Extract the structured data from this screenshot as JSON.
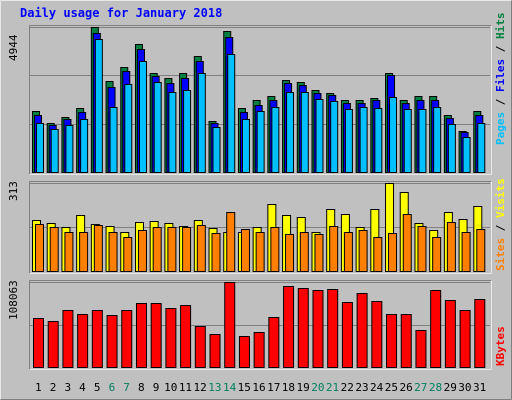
{
  "chart_data": [
    {
      "type": "bar",
      "title": "Daily usage for January 2018",
      "categories": [
        "1",
        "2",
        "3",
        "4",
        "5",
        "6",
        "7",
        "8",
        "9",
        "10",
        "11",
        "12",
        "13",
        "14",
        "15",
        "16",
        "17",
        "18",
        "19",
        "20",
        "21",
        "22",
        "23",
        "24",
        "25",
        "26",
        "27",
        "28",
        "29",
        "30",
        "31"
      ],
      "weekend_days": [
        "6",
        "7",
        "13",
        "14",
        "20",
        "21",
        "27",
        "28"
      ],
      "ylim": [
        0,
        4944
      ],
      "y_tick_label": "4944",
      "grid": true,
      "legend": "right",
      "legend_labels": {
        "pages": "Pages",
        "files": "Files",
        "hits": "Hits",
        "sep": " / "
      },
      "series": [
        {
          "name": "Hits",
          "color": "#008040",
          "values": [
            2090,
            1660,
            1880,
            2170,
            4950,
            3110,
            3580,
            4350,
            3380,
            3220,
            3360,
            3960,
            1730,
            4810,
            2170,
            2440,
            2600,
            3150,
            3070,
            2810,
            2690,
            2440,
            2440,
            2540,
            3380,
            2440,
            2580,
            2600,
            1940,
            1400,
            2090
          ]
        },
        {
          "name": "Files",
          "color": "#0000ff",
          "values": [
            1940,
            1600,
            1800,
            2030,
            4750,
            2910,
            3450,
            4200,
            3280,
            3030,
            3210,
            3800,
            1660,
            4590,
            2030,
            2290,
            2470,
            3050,
            2950,
            2680,
            2620,
            2360,
            2360,
            2440,
            3300,
            2360,
            2450,
            2450,
            1850,
            1350,
            1940
          ]
        },
        {
          "name": "Pages",
          "color": "#00c0ff",
          "values": [
            1660,
            1460,
            1590,
            1800,
            4550,
            2230,
            3000,
            3800,
            3070,
            2740,
            2810,
            3380,
            1530,
            4020,
            1810,
            2080,
            2210,
            2740,
            2740,
            2480,
            2430,
            2140,
            2210,
            2170,
            2550,
            2140,
            2140,
            2230,
            1630,
            1210,
            1660
          ]
        }
      ]
    },
    {
      "type": "bar",
      "ylim": [
        0,
        313
      ],
      "y_tick_label": "313",
      "grid": true,
      "legend": "right",
      "legend_labels": {
        "sites": "Sites",
        "visits": "Visits",
        "sep": " / "
      },
      "series": [
        {
          "name": "Visits",
          "color": "#ffff00",
          "values": [
            180,
            170,
            155,
            200,
            168,
            160,
            140,
            175,
            178,
            170,
            160,
            182,
            152,
            140,
            140,
            158,
            240,
            200,
            192,
            140,
            221,
            201,
            157,
            220,
            313,
            282,
            170,
            145,
            209,
            185,
            230
          ]
        },
        {
          "name": "Sites",
          "color": "#ff8000",
          "values": [
            167,
            157,
            140,
            140,
            162,
            140,
            120,
            145,
            158,
            155,
            155,
            162,
            136,
            210,
            150,
            140,
            155,
            130,
            140,
            130,
            161,
            140,
            145,
            120,
            135,
            202,
            160,
            120,
            175,
            140,
            150
          ]
        }
      ]
    },
    {
      "type": "bar",
      "ylim": [
        0,
        108063
      ],
      "y_tick_label": "108063",
      "grid": true,
      "legend": "right",
      "legend_labels": {
        "kbytes": "KBytes"
      },
      "series": [
        {
          "name": "KBytes",
          "color": "#ff0000",
          "values": [
            62000,
            59000,
            72000,
            67000,
            73000,
            66000,
            73000,
            82000,
            81000,
            75000,
            79000,
            52000,
            42000,
            108063,
            40000,
            44000,
            63000,
            103000,
            101000,
            98000,
            99000,
            83000,
            94000,
            84000,
            68000,
            68000,
            47000,
            98000,
            85000,
            72000,
            86000
          ]
        }
      ]
    }
  ],
  "colors": {
    "background": "#c0c0c0",
    "frame_light": "#e8e8e8",
    "frame_dark": "#808080",
    "grid": "#808080",
    "title": "#0000ff",
    "axis_text": "#000000",
    "weekend_text": "#007f5f"
  }
}
